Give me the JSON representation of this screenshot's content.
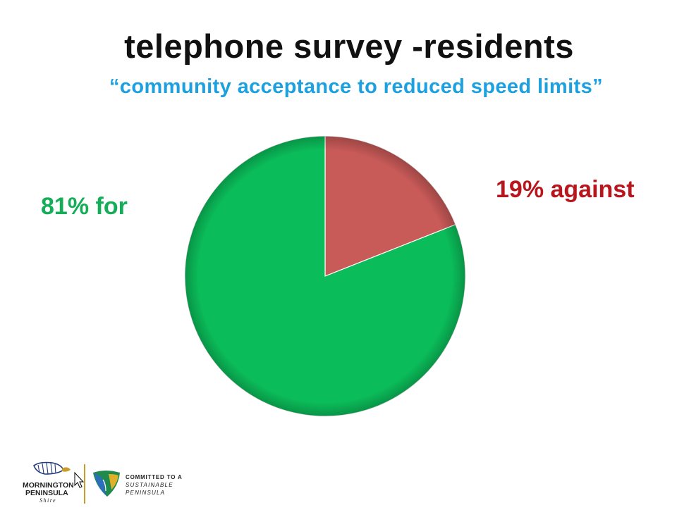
{
  "slide": {
    "title": "telephone survey -residents",
    "subtitle": "“community acceptance to reduced speed limits”"
  },
  "colors": {
    "for": "#0bbd5a",
    "against": "#c85a58",
    "for_label": "#14ad58",
    "against_label": "#b8161c",
    "subtitle": "#1ca0e0"
  },
  "chart_data": {
    "type": "pie",
    "slices": [
      {
        "label": "19% against",
        "value": 19,
        "color": "#c85a58"
      },
      {
        "label": "81% for",
        "value": 81,
        "color": "#0bbd5a"
      }
    ]
  },
  "footer": {
    "shire_logo_line1": "MORNINGTON",
    "shire_logo_line2": "PENINSULA",
    "shire_logo_line3": "Shire",
    "tagline_line1": "COMMITTED TO A",
    "tagline_line2": "SUSTAINABLE",
    "tagline_line3": "PENINSULA"
  },
  "icons": [
    "cursor-icon",
    "shire-logo-icon",
    "sustainable-peninsula-icon"
  ]
}
